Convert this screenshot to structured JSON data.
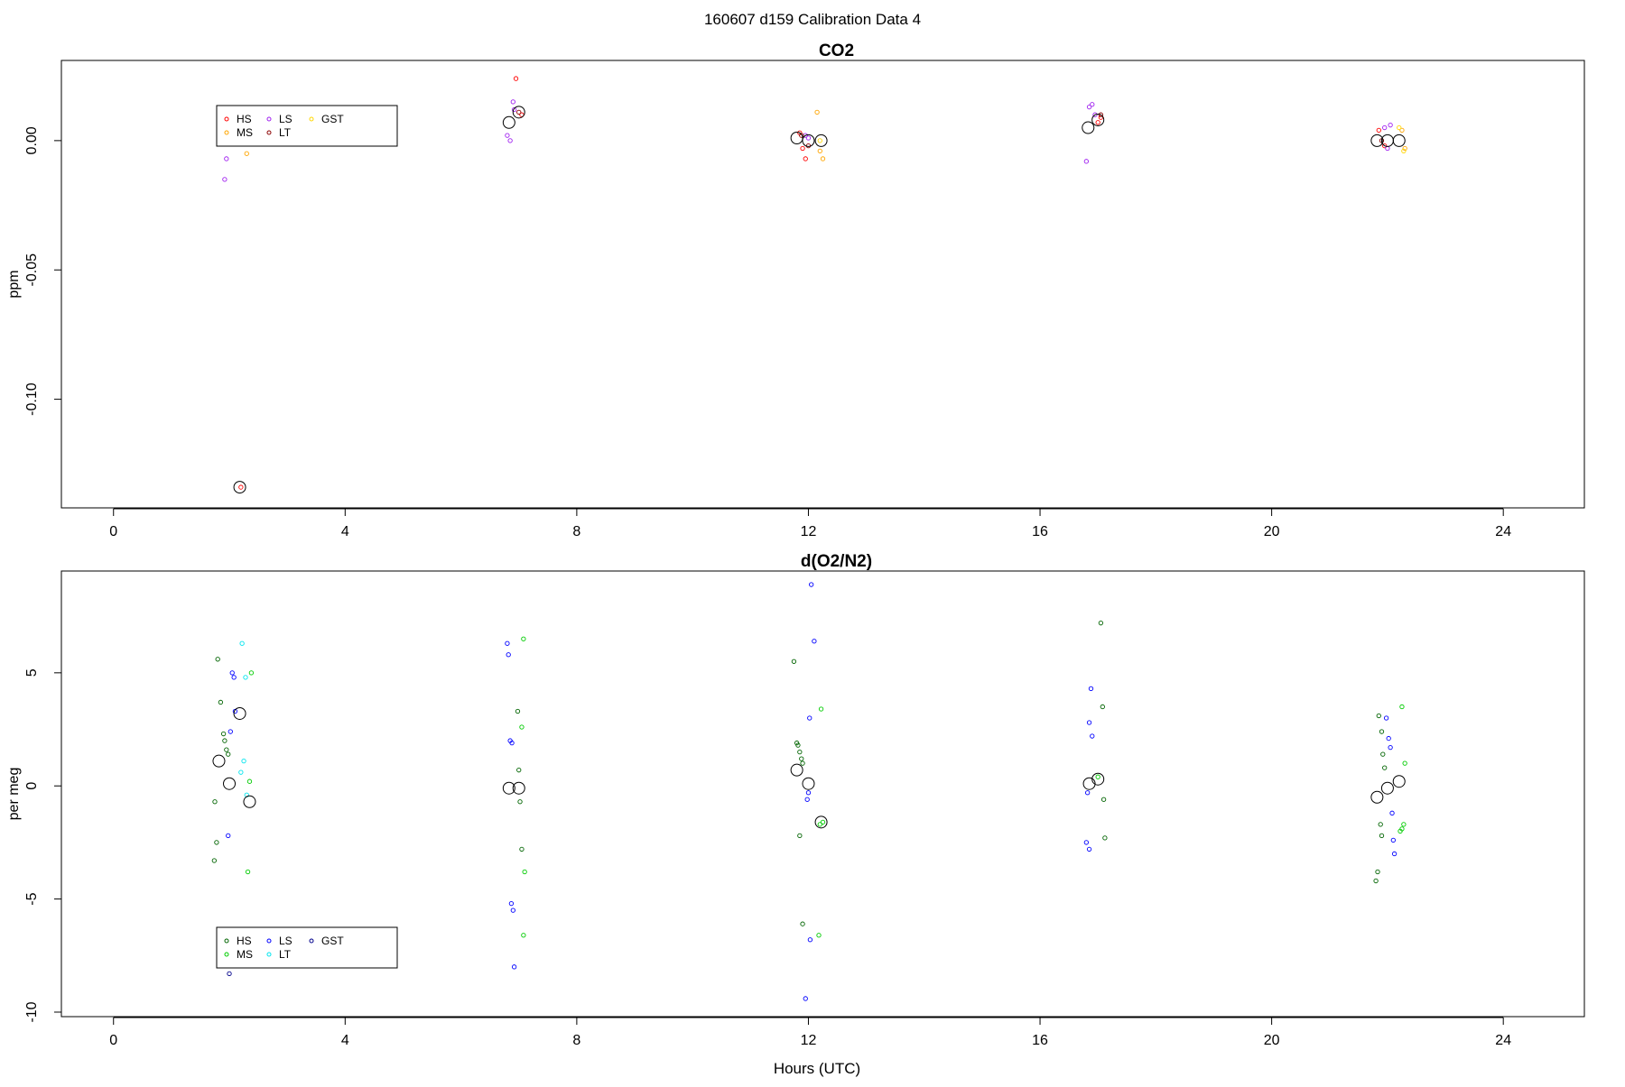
{
  "figure": {
    "main_title": "160607   d159   Calibration Data 4",
    "xlabel": "Hours (UTC)"
  },
  "chart_data": [
    {
      "type": "scatter",
      "title": "CO2",
      "xlabel": "",
      "ylabel": "ppm",
      "xlim": [
        -0.9,
        25.4
      ],
      "ylim": [
        -0.142,
        0.031
      ],
      "x_ticks": [
        0,
        4,
        8,
        12,
        16,
        20,
        24
      ],
      "y_ticks": [
        0.0,
        -0.05,
        -0.1
      ],
      "y_tick_labels": [
        "0.00",
        "-0.05",
        "-0.10"
      ],
      "legend": {
        "position": "top-left",
        "entries": [
          {
            "label": "HS",
            "color": "#ff0000"
          },
          {
            "label": "MS",
            "color": "#ffa500"
          },
          {
            "label": "LS",
            "color": "#a020f0"
          },
          {
            "label": "LT",
            "color": "#8b0000"
          },
          {
            "label": "GST",
            "color": "#ffd700"
          }
        ]
      },
      "series": [
        {
          "name": "HS",
          "color": "#ff0000",
          "x": [
            2.2,
            6.95,
            7.05,
            11.85,
            11.9,
            11.95,
            17.0,
            17.05,
            21.85,
            21.95
          ],
          "y": [
            -0.134,
            0.024,
            0.01,
            0.003,
            -0.003,
            -0.007,
            0.007,
            0.009,
            0.004,
            -0.002
          ]
        },
        {
          "name": "MS",
          "color": "#ffa500",
          "x": [
            2.3,
            12.15,
            12.2,
            12.25,
            22.25,
            22.3
          ],
          "y": [
            -0.005,
            0.011,
            -0.004,
            -0.007,
            0.004,
            -0.003
          ]
        },
        {
          "name": "LS",
          "color": "#a020f0",
          "x": [
            1.95,
            1.92,
            6.8,
            6.85,
            6.9,
            6.92,
            11.95,
            12.0,
            16.8,
            16.85,
            16.9,
            16.95,
            21.95,
            22.0,
            22.05
          ],
          "y": [
            -0.007,
            -0.015,
            0.002,
            0.0,
            0.015,
            0.012,
            0.002,
            0.001,
            -0.008,
            0.013,
            0.014,
            0.01,
            0.005,
            -0.003,
            0.006
          ]
        },
        {
          "name": "LT",
          "color": "#8b0000",
          "x": [
            7.0,
            11.88,
            12.0,
            17.05,
            21.9
          ],
          "y": [
            0.011,
            0.002,
            -0.002,
            0.01,
            0.0
          ]
        },
        {
          "name": "GST",
          "color": "#ffd700",
          "x": [
            12.2,
            22.2,
            22.28
          ],
          "y": [
            0.0,
            0.005,
            -0.004
          ]
        },
        {
          "name": "",
          "color": "#000000",
          "x": [
            2.18,
            6.83,
            7.0,
            11.8,
            12.0,
            12.22,
            16.83,
            17.0,
            21.82,
            22.0,
            22.2
          ],
          "y": [
            -0.134,
            0.007,
            0.011,
            0.001,
            0.0,
            0.0,
            0.005,
            0.008,
            -0.0,
            0.0,
            -0.0
          ]
        }
      ]
    },
    {
      "type": "scatter",
      "title": "d(O2/N2)",
      "xlabel": "Hours (UTC)",
      "ylabel": "per meg",
      "xlim": [
        -0.9,
        25.4
      ],
      "ylim": [
        -10.2,
        9.5
      ],
      "x_ticks": [
        0,
        4,
        8,
        12,
        16,
        20,
        24
      ],
      "y_ticks": [
        5,
        0,
        -5,
        -10
      ],
      "y_tick_labels": [
        "5",
        "0",
        "-5",
        "-10"
      ],
      "legend": {
        "position": "bottom-left",
        "entries": [
          {
            "label": "HS",
            "color": "#006400"
          },
          {
            "label": "MS",
            "color": "#00cc00"
          },
          {
            "label": "LS",
            "color": "#0000ff"
          },
          {
            "label": "LT",
            "color": "#00e5ee"
          },
          {
            "label": "GST",
            "color": "#00008b"
          }
        ]
      },
      "series": [
        {
          "name": "HS",
          "color": "#006400",
          "x": [
            1.8,
            1.85,
            1.9,
            1.92,
            1.95,
            1.98,
            1.75,
            1.78,
            1.74,
            6.98,
            7.0,
            7.02,
            7.05,
            11.75,
            11.8,
            11.82,
            11.85,
            11.88,
            11.9,
            11.85,
            11.9,
            17.05,
            17.08,
            17.1,
            17.12,
            21.85,
            21.9,
            21.92,
            21.95,
            21.88,
            21.9,
            21.83,
            21.8
          ],
          "y": [
            5.6,
            3.7,
            2.3,
            2.0,
            1.6,
            1.4,
            -0.7,
            -2.5,
            -3.3,
            3.3,
            0.7,
            -0.7,
            -2.8,
            5.5,
            1.9,
            1.8,
            1.5,
            1.2,
            1.0,
            -2.2,
            -6.1,
            7.2,
            3.5,
            -0.6,
            -2.3,
            3.1,
            2.4,
            1.4,
            0.8,
            -1.7,
            -2.2,
            -3.8,
            -4.2
          ]
        },
        {
          "name": "MS",
          "color": "#00cc00",
          "x": [
            2.38,
            2.35,
            2.32,
            7.08,
            7.05,
            7.1,
            7.08,
            12.22,
            12.25,
            12.2,
            12.18,
            17.0,
            22.25,
            22.3,
            22.28,
            22.22,
            22.25
          ],
          "y": [
            5.0,
            0.2,
            -3.8,
            6.5,
            2.6,
            -3.8,
            -6.6,
            3.4,
            -1.6,
            -1.7,
            -6.6,
            0.4,
            3.5,
            1.0,
            -1.7,
            -2.0,
            -1.9
          ]
        },
        {
          "name": "LS",
          "color": "#0000ff",
          "x": [
            2.05,
            2.08,
            2.1,
            2.02,
            1.98,
            6.8,
            6.82,
            6.85,
            6.88,
            6.87,
            6.9,
            6.92,
            12.05,
            12.1,
            12.02,
            12.0,
            11.98,
            12.03,
            11.95,
            16.88,
            16.85,
            16.9,
            16.82,
            16.8,
            16.85,
            21.98,
            22.02,
            22.05,
            22.08,
            22.1,
            22.12
          ],
          "y": [
            5.0,
            4.8,
            3.3,
            2.4,
            -2.2,
            6.3,
            5.8,
            2.0,
            1.9,
            -5.2,
            -5.5,
            -8.0,
            8.9,
            6.4,
            3.0,
            -0.3,
            -0.6,
            -6.8,
            -9.4,
            4.3,
            2.8,
            2.2,
            -0.3,
            -2.5,
            -2.8,
            3.0,
            2.1,
            1.7,
            -1.2,
            -2.4,
            -3.0
          ]
        },
        {
          "name": "LT",
          "color": "#00e5ee",
          "x": [
            2.22,
            2.28,
            2.25,
            2.2,
            2.3
          ],
          "y": [
            6.3,
            4.8,
            1.1,
            0.6,
            -0.4
          ]
        },
        {
          "name": "GST",
          "color": "#00008b",
          "x": [
            2.0
          ],
          "y": [
            -8.3
          ]
        },
        {
          "name": "",
          "color": "#000000",
          "x": [
            1.82,
            2.0,
            2.18,
            2.35,
            6.83,
            7.0,
            11.8,
            12.0,
            12.22,
            16.85,
            17.0,
            21.82,
            22.0,
            22.2
          ],
          "y": [
            1.1,
            0.1,
            3.2,
            -0.7,
            -0.1,
            -0.1,
            0.7,
            0.1,
            -1.6,
            0.1,
            0.3,
            -0.5,
            -0.1,
            0.2
          ]
        }
      ]
    }
  ]
}
